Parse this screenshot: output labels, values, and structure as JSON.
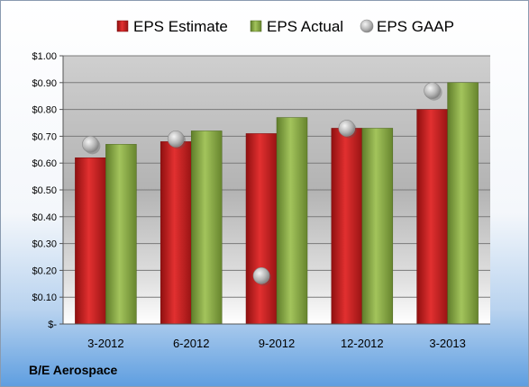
{
  "chart_data": {
    "type": "bar",
    "categories": [
      "3-2012",
      "6-2012",
      "9-2012",
      "12-2012",
      "3-2013"
    ],
    "series": [
      {
        "name": "EPS Estimate",
        "kind": "bar",
        "color": "#cc1f1f",
        "values": [
          0.62,
          0.68,
          0.71,
          0.73,
          0.8
        ]
      },
      {
        "name": "EPS Actual",
        "kind": "bar",
        "color": "#8fb04a",
        "values": [
          0.67,
          0.72,
          0.77,
          0.73,
          0.9
        ]
      },
      {
        "name": "EPS GAAP",
        "kind": "scatter",
        "color": "#c0c4c8",
        "values": [
          0.67,
          0.69,
          0.18,
          0.73,
          0.87
        ]
      }
    ],
    "yticks": [
      "$-",
      "$0.10",
      "$0.20",
      "$0.30",
      "$0.40",
      "$0.50",
      "$0.60",
      "$0.70",
      "$0.80",
      "$0.90",
      "$1.00"
    ],
    "ylim": [
      0,
      1.0
    ],
    "ystep": 0.1,
    "grid": true,
    "legend_position": "top"
  },
  "company": "B/E Aerospace"
}
